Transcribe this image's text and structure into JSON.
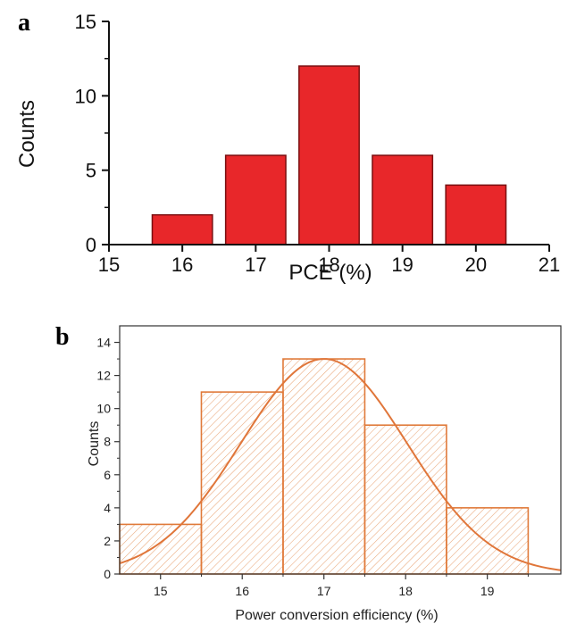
{
  "colors": {
    "bar_a_fill": "#e8272a",
    "bar_a_stroke": "#7a0f10",
    "hist_b_stroke": "#e07a3a",
    "hist_b_hatch": "#e9a77a",
    "fit_b": "#e0763a"
  },
  "chart_data": [
    {
      "panel_label": "a",
      "type": "bar",
      "categories": [
        "16",
        "17",
        "18",
        "19",
        "20"
      ],
      "x": [
        16,
        17,
        18,
        19,
        20
      ],
      "values": [
        2,
        6,
        12,
        6,
        4
      ],
      "title": "",
      "xlabel": "PCE (%)",
      "ylabel": "Counts",
      "xlim": [
        15,
        21
      ],
      "ylim": [
        0,
        15
      ],
      "xticks": [
        15,
        16,
        17,
        18,
        19,
        20,
        21
      ],
      "yticks": [
        0,
        5,
        10,
        15
      ],
      "grid": false
    },
    {
      "panel_label": "b",
      "type": "bar",
      "subtype": "histogram-with-fit",
      "categories": [
        "15",
        "16",
        "17",
        "18",
        "19"
      ],
      "x": [
        15,
        16,
        17,
        18,
        19
      ],
      "values": [
        3,
        11,
        13,
        9,
        4
      ],
      "bin_width": 1,
      "fit": {
        "kind": "gaussian",
        "center": 17,
        "peak": 13,
        "sigma": 1.02
      },
      "title": "",
      "xlabel": "Power conversion efficiency (%)",
      "ylabel": "Counts",
      "xlim": [
        14.5,
        19.9
      ],
      "ylim": [
        0,
        15
      ],
      "xticks": [
        15,
        16,
        17,
        18,
        19
      ],
      "yticks": [
        0,
        2,
        4,
        6,
        8,
        10,
        12,
        14
      ],
      "grid": false
    }
  ]
}
